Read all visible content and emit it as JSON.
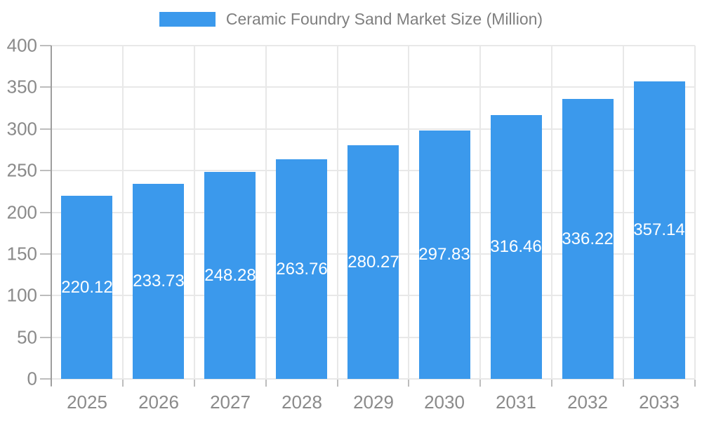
{
  "chart_data": {
    "type": "bar",
    "title": "Ceramic Foundry Sand Market Size (Million)",
    "categories": [
      "2025",
      "2026",
      "2027",
      "2028",
      "2029",
      "2030",
      "2031",
      "2032",
      "2033"
    ],
    "series": [
      {
        "name": "Ceramic Foundry Sand Market Size (Million)",
        "values": [
          220.12,
          233.73,
          248.28,
          263.76,
          280.27,
          297.83,
          316.46,
          336.22,
          357.14
        ]
      }
    ],
    "value_labels": [
      "220.12",
      "233.73",
      "248.28",
      "263.76",
      "280.27",
      "297.83",
      "316.46",
      "336.22",
      "357.14"
    ],
    "xlabel": "",
    "ylabel": "",
    "ylim": [
      0,
      400
    ],
    "yticks": [
      0,
      50,
      100,
      150,
      200,
      250,
      300,
      350,
      400
    ],
    "grid": true,
    "legend_position": "top",
    "colors": {
      "bar": "#3b99ec",
      "grid": "#e8e8e8",
      "axis": "#9e9e9e",
      "tick": "#bdbdbd",
      "tick_label": "#8a8a8a",
      "title": "#7f7f7f",
      "value_label": "#ffffff",
      "background": "#ffffff"
    }
  }
}
